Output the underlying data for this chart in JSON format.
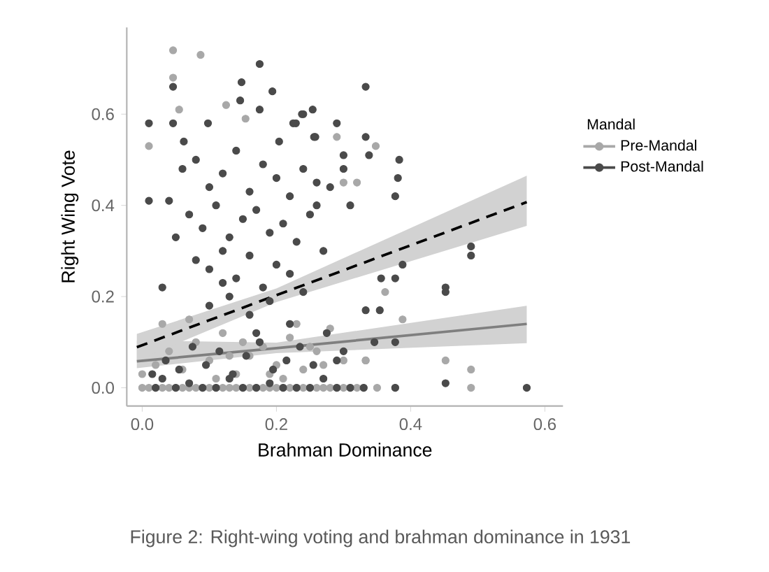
{
  "chart_data": {
    "type": "scatter",
    "xlabel": "Brahman Dominance",
    "ylabel": "Right Wing Vote",
    "legend_title": "Mandal",
    "legend": "right",
    "marker": "circle",
    "xlim": [
      -0.023,
      0.627
    ],
    "ylim": [
      -0.04,
      0.79
    ],
    "xticks": [
      {
        "value": 0,
        "label": "0.0"
      },
      0.2,
      0.4,
      0.6
    ],
    "yticks": [
      {
        "value": 0,
        "label": "0.0"
      },
      0.2,
      0.4,
      0.6
    ],
    "annotations": [
      "Figure 2: Right-wing voting and brahman dominance in 1931"
    ],
    "series": [
      {
        "name": "Pre-Mandal",
        "color": "#a8a8a8",
        "x": [
          0.046,
          0.087,
          0.046,
          0.055,
          0.125,
          0.154,
          0.01,
          0.29,
          0.32,
          0.348,
          0.3,
          0.333,
          0.362,
          0.388,
          0.333,
          0.452,
          0.49,
          0.49,
          0.0,
          0.0,
          0.01,
          0.02,
          0.03,
          0.04,
          0.05,
          0.06,
          0.07,
          0.08,
          0.09,
          0.1,
          0.11,
          0.12,
          0.13,
          0.14,
          0.15,
          0.16,
          0.17,
          0.18,
          0.19,
          0.2,
          0.21,
          0.22,
          0.23,
          0.24,
          0.25,
          0.26,
          0.27,
          0.28,
          0.29,
          0.3,
          0.31,
          0.32,
          0.33,
          0.35,
          0.377,
          0.02,
          0.04,
          0.06,
          0.08,
          0.1,
          0.12,
          0.14,
          0.16,
          0.18,
          0.2,
          0.22,
          0.24,
          0.26,
          0.28,
          0.3,
          0.07,
          0.11,
          0.15,
          0.19,
          0.23,
          0.27,
          0.03,
          0.13,
          0.21,
          0.25
        ],
        "values": [
          0.74,
          0.73,
          0.68,
          0.61,
          0.62,
          0.59,
          0.53,
          0.55,
          0.45,
          0.53,
          0.45,
          0.06,
          0.21,
          0.15,
          0.06,
          0.06,
          0.04,
          0.0,
          0.0,
          0.03,
          0.0,
          0.0,
          0.0,
          0.0,
          0.0,
          0.0,
          0.0,
          0.0,
          0.0,
          0.0,
          0.0,
          0.0,
          0.0,
          0.0,
          0.0,
          0.0,
          0.0,
          0.0,
          0.0,
          0.0,
          0.0,
          0.0,
          0.0,
          0.0,
          0.0,
          0.0,
          0.0,
          0.0,
          0.0,
          0.0,
          0.0,
          0.0,
          0.0,
          0.0,
          0.0,
          0.05,
          0.08,
          0.04,
          0.1,
          0.06,
          0.12,
          0.03,
          0.07,
          0.09,
          0.05,
          0.11,
          0.04,
          0.08,
          0.13,
          0.06,
          0.15,
          0.02,
          0.1,
          0.03,
          0.14,
          0.05,
          0.14,
          0.07,
          0.02,
          0.09
        ]
      },
      {
        "name": "Post-Mandal",
        "color": "#4a4a4a",
        "x": [
          0.01,
          0.046,
          0.046,
          0.175,
          0.148,
          0.194,
          0.175,
          0.146,
          0.098,
          0.062,
          0.229,
          0.254,
          0.24,
          0.256,
          0.204,
          0.04,
          0.01,
          0.333,
          0.238,
          0.29,
          0.225,
          0.258,
          0.333,
          0.3,
          0.338,
          0.383,
          0.381,
          0.3,
          0.377,
          0.49,
          0.49,
          0.452,
          0.452,
          0.452,
          0.573,
          0.388,
          0.377,
          0.377,
          0.377,
          0.354,
          0.333,
          0.346,
          0.29,
          0.356,
          0.02,
          0.03,
          0.05,
          0.07,
          0.09,
          0.11,
          0.13,
          0.15,
          0.17,
          0.19,
          0.21,
          0.23,
          0.25,
          0.27,
          0.29,
          0.31,
          0.33,
          0.06,
          0.08,
          0.1,
          0.12,
          0.14,
          0.16,
          0.18,
          0.2,
          0.22,
          0.24,
          0.26,
          0.28,
          0.07,
          0.09,
          0.11,
          0.13,
          0.15,
          0.17,
          0.19,
          0.21,
          0.23,
          0.25,
          0.27,
          0.08,
          0.1,
          0.12,
          0.14,
          0.16,
          0.18,
          0.2,
          0.22,
          0.24,
          0.1,
          0.13,
          0.16,
          0.19,
          0.22,
          0.12,
          0.17,
          0.015,
          0.035,
          0.055,
          0.075,
          0.095,
          0.115,
          0.135,
          0.155,
          0.175,
          0.195,
          0.215,
          0.235,
          0.255,
          0.275,
          0.3,
          0.03,
          0.05,
          0.26,
          0.31
        ],
        "values": [
          0.58,
          0.66,
          0.58,
          0.71,
          0.67,
          0.65,
          0.61,
          0.63,
          0.58,
          0.54,
          0.58,
          0.61,
          0.6,
          0.55,
          0.54,
          0.41,
          0.41,
          0.66,
          0.6,
          0.58,
          0.58,
          0.55,
          0.55,
          0.51,
          0.51,
          0.5,
          0.46,
          0.48,
          0.42,
          0.31,
          0.29,
          0.22,
          0.21,
          0.01,
          0.0,
          0.27,
          0.24,
          0.1,
          0.0,
          0.17,
          0.17,
          0.1,
          0.06,
          0.24,
          0.0,
          0.02,
          0.0,
          0.01,
          0.0,
          0.0,
          0.02,
          0.0,
          0.0,
          0.01,
          0.0,
          0.0,
          0.0,
          0.02,
          0.0,
          0.0,
          0.0,
          0.48,
          0.5,
          0.44,
          0.47,
          0.52,
          0.43,
          0.49,
          0.46,
          0.42,
          0.48,
          0.4,
          0.44,
          0.38,
          0.35,
          0.4,
          0.33,
          0.37,
          0.39,
          0.34,
          0.36,
          0.32,
          0.38,
          0.3,
          0.28,
          0.26,
          0.3,
          0.24,
          0.29,
          0.22,
          0.27,
          0.25,
          0.21,
          0.18,
          0.2,
          0.16,
          0.19,
          0.14,
          0.23,
          0.12,
          0.03,
          0.06,
          0.04,
          0.09,
          0.05,
          0.08,
          0.03,
          0.07,
          0.1,
          0.04,
          0.06,
          0.09,
          0.05,
          0.12,
          0.08,
          0.22,
          0.33,
          0.45,
          0.4
        ]
      },
      {
        "type": "line",
        "marker": "none",
        "color": "#7f7f7f",
        "line_style": "solid",
        "x": [
          -0.008,
          0.2,
          0.573
        ],
        "values": [
          0.058,
          0.087,
          0.14
        ],
        "lower": [
          0.043,
          0.076,
          0.098
        ],
        "upper": [
          0.104,
          0.099,
          0.18
        ]
      },
      {
        "type": "line",
        "marker": "none",
        "color": "#000000",
        "line_style": "dashed",
        "x": [
          -0.008,
          0.2,
          0.573
        ],
        "values": [
          0.089,
          0.203,
          0.407
        ],
        "lower": [
          0.06,
          0.188,
          0.355
        ],
        "upper": [
          0.118,
          0.218,
          0.465
        ]
      }
    ]
  }
}
